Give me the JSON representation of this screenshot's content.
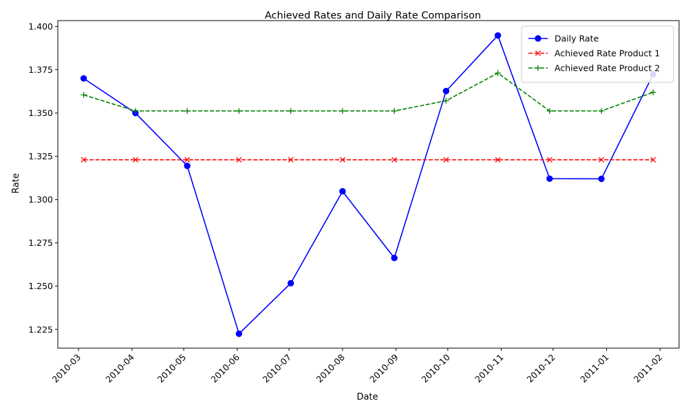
{
  "chart_data": {
    "type": "line",
    "title": "Achieved Rates and Daily Rate Comparison",
    "xlabel": "Date",
    "ylabel": "Rate",
    "x": [
      "2010-03-04",
      "2010-04-03",
      "2010-05-03",
      "2010-06-02",
      "2010-07-02",
      "2010-08-01",
      "2010-08-31",
      "2010-09-30",
      "2010-10-30",
      "2010-11-29",
      "2010-12-29",
      "2011-01-28"
    ],
    "x_ticks": [
      "2010-03",
      "2010-04",
      "2010-05",
      "2010-06",
      "2010-07",
      "2010-08",
      "2010-09",
      "2010-10",
      "2010-11",
      "2010-12",
      "2011-01",
      "2011-02"
    ],
    "xlim": [
      "2010-02-17",
      "2011-02-12"
    ],
    "y_ticks": [
      1.225,
      1.25,
      1.275,
      1.3,
      1.325,
      1.35,
      1.375,
      1.4
    ],
    "ylim": [
      1.2142,
      1.4034
    ],
    "grid": false,
    "legend_position": "top-right",
    "series": [
      {
        "name": "Daily Rate",
        "color": "#0000ff",
        "linestyle": "solid",
        "marker": "circle",
        "values": [
          1.37,
          1.35,
          1.3195,
          1.2225,
          1.2517,
          1.3048,
          1.2663,
          1.3627,
          1.3948,
          1.3121,
          1.312,
          1.3724
        ]
      },
      {
        "name": "Achieved Rate Product 1",
        "color": "#ff0000",
        "linestyle": "dashed",
        "marker": "x",
        "values": [
          1.323,
          1.323,
          1.323,
          1.323,
          1.323,
          1.323,
          1.323,
          1.323,
          1.323,
          1.323,
          1.323,
          1.323
        ]
      },
      {
        "name": "Achieved Rate Product 2",
        "color": "#008000",
        "linestyle": "dashed",
        "marker": "plus",
        "values": [
          1.3605,
          1.3512,
          1.3512,
          1.3512,
          1.3512,
          1.3512,
          1.3512,
          1.3571,
          1.3731,
          1.3512,
          1.3512,
          1.362
        ]
      }
    ]
  }
}
